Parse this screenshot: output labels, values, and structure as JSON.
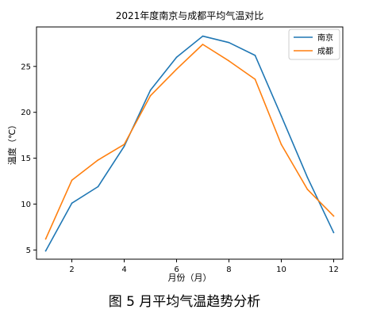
{
  "chart_data": {
    "type": "line",
    "title": "2021年度南京与成都平均气温对比",
    "xlabel": "月份（月）",
    "ylabel": "温度（℃）",
    "x": [
      1,
      2,
      3,
      4,
      5,
      6,
      7,
      8,
      9,
      10,
      11,
      12
    ],
    "xlim": [
      0.65,
      12.35
    ],
    "ylim": [
      4.0,
      29.3
    ],
    "xticks": [
      2,
      4,
      6,
      8,
      10,
      12
    ],
    "yticks": [
      5,
      10,
      15,
      20,
      25
    ],
    "grid": false,
    "legend_position": "top-right",
    "series": [
      {
        "name": "南京",
        "color": "#1f77b4",
        "values": [
          4.9,
          10.1,
          11.9,
          16.3,
          22.4,
          26.0,
          28.3,
          27.6,
          26.2,
          19.6,
          12.9,
          6.9
        ]
      },
      {
        "name": "成都",
        "color": "#ff7f0e",
        "values": [
          6.2,
          12.6,
          14.8,
          16.5,
          21.8,
          24.7,
          27.4,
          25.6,
          23.6,
          16.5,
          11.6,
          8.7
        ]
      }
    ]
  },
  "caption": "图 5 月平均气温趋势分析"
}
